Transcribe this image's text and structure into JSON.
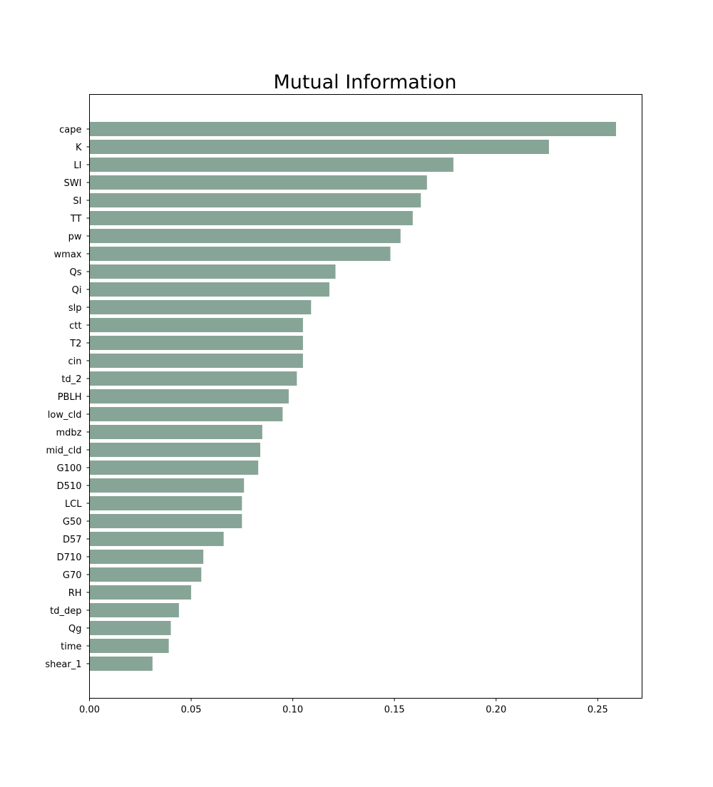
{
  "chart_data": {
    "type": "bar",
    "orientation": "horizontal",
    "title": "Mutual Information",
    "xlabel": "",
    "ylabel": "",
    "categories": [
      "cape",
      "K",
      "LI",
      "SWI",
      "SI",
      "TT",
      "pw",
      "wmax",
      "Qs",
      "Qi",
      "slp",
      "ctt",
      "T2",
      "cin",
      "td_2",
      "PBLH",
      "low_cld",
      "mdbz",
      "mid_cld",
      "G100",
      "D510",
      "LCL",
      "G50",
      "D57",
      "D710",
      "G70",
      "RH",
      "td_dep",
      "Qg",
      "time",
      "shear_1"
    ],
    "values": [
      0.259,
      0.226,
      0.179,
      0.166,
      0.163,
      0.159,
      0.153,
      0.148,
      0.121,
      0.118,
      0.109,
      0.105,
      0.105,
      0.105,
      0.102,
      0.098,
      0.095,
      0.085,
      0.084,
      0.083,
      0.076,
      0.075,
      0.075,
      0.066,
      0.056,
      0.055,
      0.05,
      0.044,
      0.04,
      0.039,
      0.031
    ],
    "xlim": [
      0.0,
      0.2718
    ],
    "xticks": [
      0.0,
      0.05,
      0.1,
      0.15,
      0.2,
      0.25
    ],
    "xtick_labels": [
      "0.00",
      "0.05",
      "0.10",
      "0.15",
      "0.20",
      "0.25"
    ],
    "bar_color": "#87a596",
    "grid": false,
    "legend": "none"
  }
}
